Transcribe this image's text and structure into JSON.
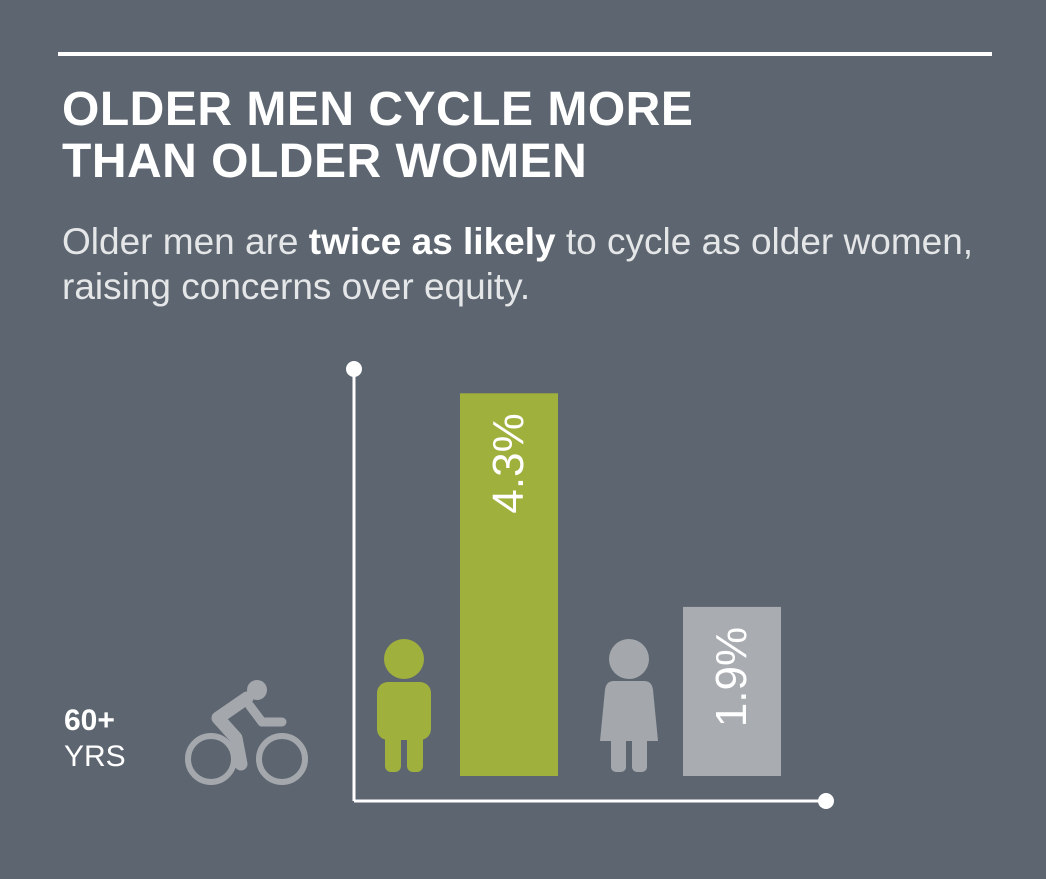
{
  "title_line1": "OLDER MEN CYCLE MORE",
  "title_line2": "THAN OLDER WOMEN",
  "subtitle": {
    "part1": "Older men are ",
    "bold": "twice as likely",
    "part2": " to cycle as older women, raising concerns over equity."
  },
  "age_group": {
    "line1": "60+",
    "line2": "YRS"
  },
  "icons": {
    "cyclist": "cyclist-icon",
    "man": "man-icon",
    "woman": "woman-icon"
  },
  "colors": {
    "background": "#5d6670",
    "men": "#a0b03c",
    "women": "#a9adb2",
    "icon_grey": "#a4a8ad",
    "axis": "#ffffff"
  },
  "chart_data": {
    "type": "bar",
    "categories": [
      "Men",
      "Women"
    ],
    "values": [
      4.3,
      1.9
    ],
    "value_labels": [
      "4.3%",
      "1.9%"
    ],
    "unit": "%",
    "ylim": [
      0,
      5.0
    ],
    "grid": false,
    "legend": "none"
  }
}
